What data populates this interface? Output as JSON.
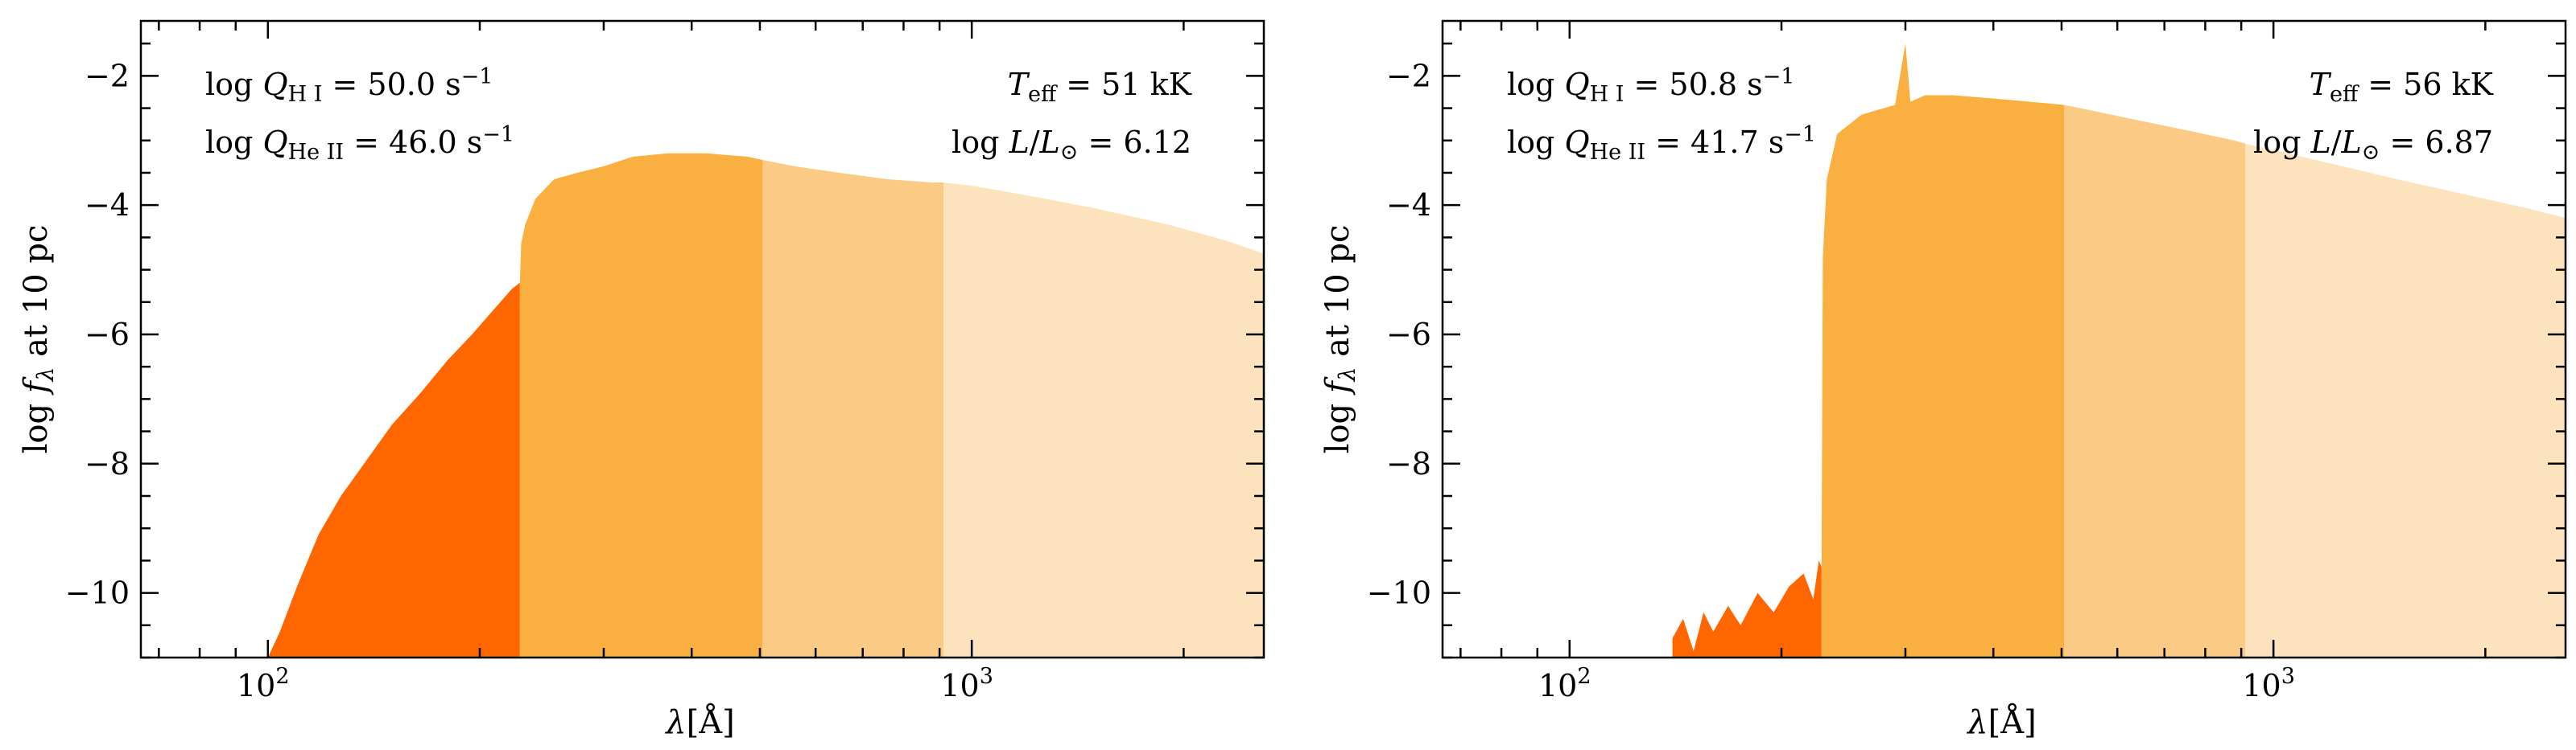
{
  "chart_data": [
    {
      "type": "area",
      "xscale": "log",
      "xlim": [
        66,
        2600
      ],
      "ylim": [
        -11,
        -1.15
      ],
      "xlabel": "λ[Å]",
      "ylabel": "log fλ at 10 pc",
      "yticks": [
        -10,
        -8,
        -6,
        -4,
        -2
      ],
      "ytick_labels": [
        "−10",
        "−8",
        "−6",
        "−4",
        "−2"
      ],
      "xtick_labels": [
        "10",
        "10"
      ],
      "xtick_exponents": [
        "2",
        "3"
      ],
      "xticks": [
        100,
        1000
      ],
      "grid": false,
      "bands": [
        {
          "x_range": [
            100,
            228
          ],
          "color": "#ff6600"
        },
        {
          "x_range": [
            228,
            504
          ],
          "color": "#f9b040"
        },
        {
          "x_range": [
            504,
            912
          ],
          "color": "#fbcb85"
        },
        {
          "x_range": [
            912,
            2600
          ],
          "color": "#fde3bd"
        }
      ],
      "series": [
        {
          "x": [
            100,
            104,
            110,
            118,
            127,
            137,
            150,
            165,
            180,
            195,
            210,
            222,
            228,
            229,
            232,
            240,
            255,
            275,
            300,
            330,
            370,
            420,
            480,
            504,
            560,
            650,
            760,
            880,
            912,
            1000,
            1200,
            1500,
            1900,
            2300,
            2600
          ],
          "y": [
            -11.0,
            -10.6,
            -9.9,
            -9.1,
            -8.5,
            -8.0,
            -7.4,
            -6.9,
            -6.4,
            -6.0,
            -5.6,
            -5.3,
            -5.2,
            -4.6,
            -4.3,
            -3.9,
            -3.6,
            -3.5,
            -3.4,
            -3.25,
            -3.2,
            -3.2,
            -3.25,
            -3.3,
            -3.4,
            -3.5,
            -3.6,
            -3.65,
            -3.65,
            -3.7,
            -3.85,
            -4.05,
            -4.3,
            -4.55,
            -4.75
          ]
        }
      ],
      "annotations": {
        "q_h": {
          "pre": "log ",
          "q": "Q",
          "sub": "H I",
          "value": " = 50.0 s",
          "exp": "−1"
        },
        "q_he": {
          "pre": "log ",
          "q": "Q",
          "sub": "He II",
          "value": " = 46.0 s",
          "exp": "−1"
        },
        "teff": {
          "t": "T",
          "sub": "eff",
          "value": " = 51 kK"
        },
        "lum": {
          "pre": "log ",
          "l": "L",
          "slash": "/",
          "l2": "L",
          "sun": "⊙",
          "value": " = 6.12"
        }
      }
    },
    {
      "type": "area",
      "xscale": "log",
      "xlim": [
        66,
        2600
      ],
      "ylim": [
        -11,
        -1.15
      ],
      "xlabel": "λ[Å]",
      "ylabel": "log fλ at 10 pc",
      "yticks": [
        -10,
        -8,
        -6,
        -4,
        -2
      ],
      "ytick_labels": [
        "−10",
        "−8",
        "−6",
        "−4",
        "−2"
      ],
      "xtick_labels": [
        "10",
        "10"
      ],
      "xtick_exponents": [
        "2",
        "3"
      ],
      "xticks": [
        100,
        1000
      ],
      "grid": false,
      "bands": [
        {
          "x_range": [
            140,
            228
          ],
          "color": "#ff6600"
        },
        {
          "x_range": [
            228,
            504
          ],
          "color": "#f9b040"
        },
        {
          "x_range": [
            504,
            912
          ],
          "color": "#fbcb85"
        },
        {
          "x_range": [
            912,
            2600
          ],
          "color": "#fde3bd"
        }
      ],
      "series": [
        {
          "x": [
            140,
            145,
            150,
            155,
            160,
            168,
            175,
            185,
            195,
            205,
            215,
            222,
            226,
            228,
            229,
            232,
            240,
            260,
            290,
            300,
            305,
            320,
            350,
            400,
            450,
            504,
            560,
            650,
            760,
            880,
            912,
            1000,
            1200,
            1500,
            1900,
            2300,
            2600
          ],
          "y": [
            -10.7,
            -10.4,
            -10.9,
            -10.3,
            -10.6,
            -10.2,
            -10.5,
            -10.0,
            -10.3,
            -9.9,
            -9.7,
            -10.1,
            -9.5,
            -9.6,
            -4.8,
            -3.6,
            -2.9,
            -2.6,
            -2.45,
            -1.5,
            -2.4,
            -2.3,
            -2.3,
            -2.35,
            -2.4,
            -2.45,
            -2.55,
            -2.7,
            -2.85,
            -3.0,
            -3.05,
            -3.15,
            -3.35,
            -3.6,
            -3.85,
            -4.05,
            -4.2
          ]
        }
      ],
      "annotations": {
        "q_h": {
          "pre": "log ",
          "q": "Q",
          "sub": "H I",
          "value": " = 50.8 s",
          "exp": "−1"
        },
        "q_he": {
          "pre": "log ",
          "q": "Q",
          "sub": "He II",
          "value": " = 41.7 s",
          "exp": "−1"
        },
        "teff": {
          "t": "T",
          "sub": "eff",
          "value": " = 56 kK"
        },
        "lum": {
          "pre": "log ",
          "l": "L",
          "slash": "/",
          "l2": "L",
          "sun": "⊙",
          "value": " = 6.87"
        }
      }
    }
  ]
}
